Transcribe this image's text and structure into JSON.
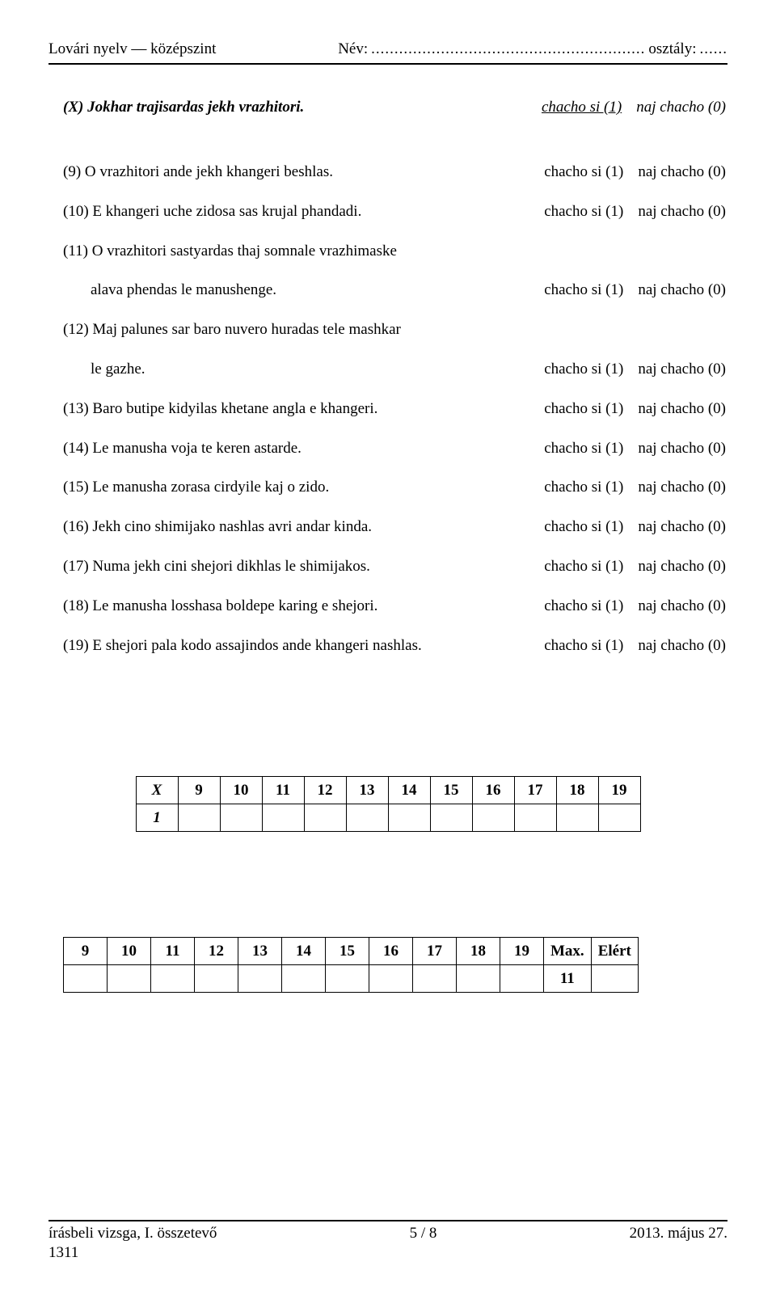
{
  "header": {
    "subject": "Lovári nyelv — középszint",
    "name_label": "Név:",
    "name_dots": "...........................................................",
    "class_label": "osztály:",
    "class_dots": "......"
  },
  "example": {
    "label": "(X) Jokhar trajisardas jekh vrazhitori.",
    "true_label": "chacho si (1)",
    "false_label": "naj chacho (0)"
  },
  "answers": {
    "true_label": "chacho si (1)",
    "false_label": "naj chacho (0)"
  },
  "questions": [
    {
      "n": "(9)",
      "text": "O vrazhitori ande jekh khangeri beshlas."
    },
    {
      "n": "(10)",
      "text": "E khangeri uche zidosa sas krujal phandadi."
    },
    {
      "n": "(11)",
      "text": "O vrazhitori sastyardas thaj somnale vrazhimaske",
      "cont": "alava phendas le manushenge."
    },
    {
      "n": "(12)",
      "text": "Maj palunes sar baro nuvero huradas tele mashkar",
      "cont": "le gazhe."
    },
    {
      "n": "(13)",
      "text": "Baro butipe kidyilas khetane angla e khangeri."
    },
    {
      "n": "(14)",
      "text": "Le manusha voja te keren astarde."
    },
    {
      "n": "(15)",
      "text": "Le manusha zorasa cirdyile kaj o zido."
    },
    {
      "n": "(16)",
      "text": "Jekh cino shimijako nashlas avri andar kinda."
    },
    {
      "n": "(17)",
      "text": "Numa jekh cini shejori dikhlas le shimijakos."
    },
    {
      "n": "(18)",
      "text": "Le manusha losshasa boldepe karing e shejori."
    },
    {
      "n": "(19)",
      "text": "E shejori pala kodo assajindos ande khangeri nashlas."
    }
  ],
  "score_grid": {
    "header": [
      "X",
      "9",
      "10",
      "11",
      "12",
      "13",
      "14",
      "15",
      "16",
      "17",
      "18",
      "19"
    ],
    "first_cell": "1"
  },
  "result_grid": {
    "header": [
      "9",
      "10",
      "11",
      "12",
      "13",
      "14",
      "15",
      "16",
      "17",
      "18",
      "19",
      "Max.",
      "Elért"
    ],
    "max_value": "11"
  },
  "footer": {
    "left": "írásbeli vizsga, I. összetevő",
    "center": "5 / 8",
    "right": "2013. május 27.",
    "code": "1311"
  }
}
